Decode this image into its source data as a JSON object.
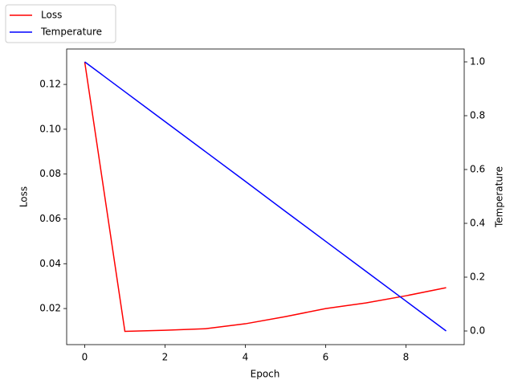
{
  "chart_data": {
    "type": "line",
    "x_label": "Epoch",
    "y_label": "Loss",
    "y2_label": "Temperature",
    "x": [
      0,
      1,
      2,
      3,
      4,
      5,
      6,
      7,
      8,
      9
    ],
    "series": [
      {
        "name": "Loss",
        "color": "#ff0000",
        "values": [
          0.13,
          0.0098,
          0.0103,
          0.011,
          0.0132,
          0.0164,
          0.02,
          0.0225,
          0.0257,
          0.0293
        ]
      },
      {
        "name": "Temperature",
        "color": "#0000ff",
        "axis": "y2",
        "values": [
          1.0,
          0.889,
          0.778,
          0.667,
          0.556,
          0.444,
          0.333,
          0.222,
          0.111,
          0.0
        ]
      }
    ],
    "xlim": [
      -0.45,
      9.45
    ],
    "xticks": [
      0,
      2,
      4,
      6,
      8
    ],
    "ylim": [
      0.0039,
      0.1358
    ],
    "yticks": [
      0.02,
      0.04,
      0.06,
      0.08,
      {
        "value": 0.1,
        "label": "0.10"
      },
      0.12
    ],
    "y2lim": [
      -0.0507,
      1.0478
    ],
    "y2ticks": [
      {
        "value": 0,
        "label": "0.0"
      },
      0.2,
      0.4,
      0.6,
      0.8,
      {
        "value": 1,
        "label": "1.0"
      }
    ],
    "legend": "upper left",
    "grid": false
  }
}
